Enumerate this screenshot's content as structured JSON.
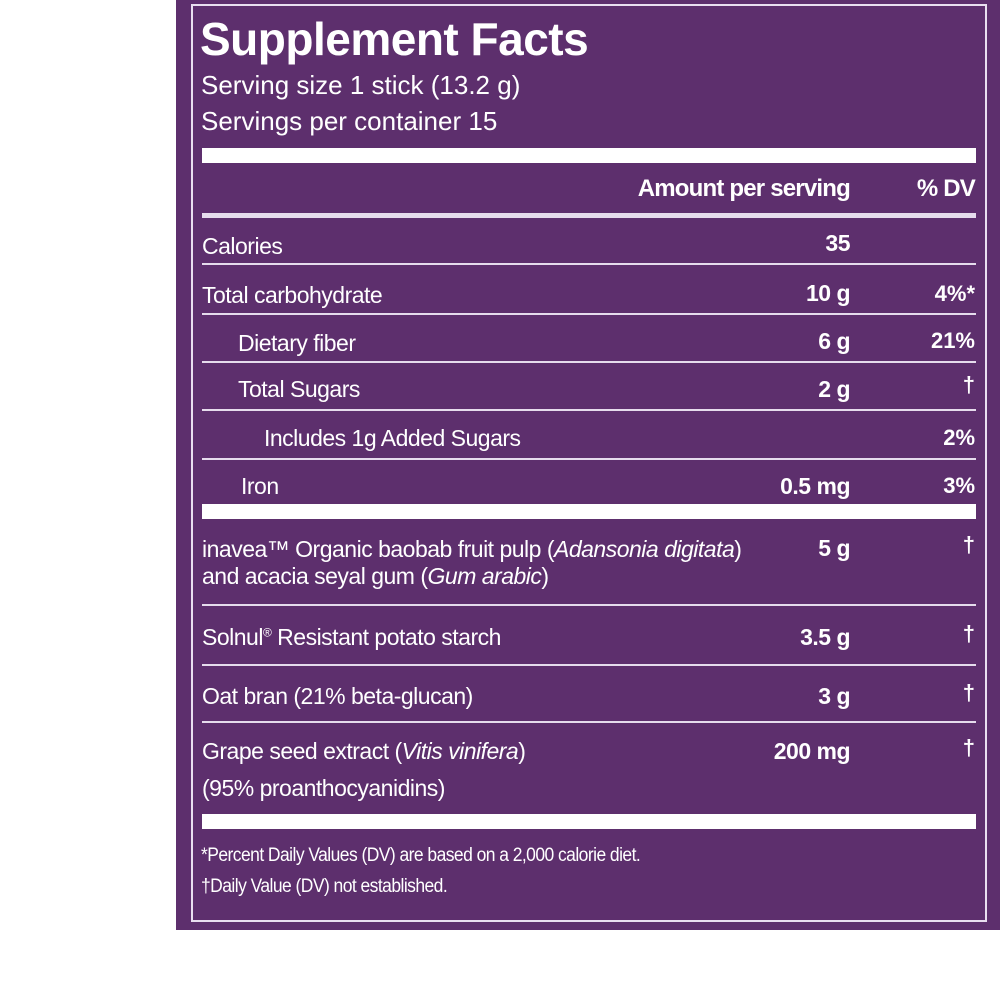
{
  "title": "Supplement Facts",
  "serving_size": "Serving size 1 stick (13.2 g)",
  "servings_per_container": "Servings per container 15",
  "header": {
    "amount": "Amount per serving",
    "dv": "% DV"
  },
  "nutrients": [
    {
      "label": "Calories",
      "amount": "35",
      "dv": ""
    },
    {
      "label": "Total carbohydrate",
      "amount": "10 g",
      "dv": "4%*"
    },
    {
      "label": "Dietary fiber",
      "amount": "6 g",
      "dv": "21%"
    },
    {
      "label": "Total Sugars",
      "amount": "2 g",
      "dv": "†"
    },
    {
      "label": "Includes 1g Added Sugars",
      "amount": "",
      "dv": "2%"
    },
    {
      "label": "Iron",
      "amount": "0.5 mg",
      "dv": "3%"
    }
  ],
  "ingredients": [
    {
      "line1_a": "inavea™ Organic baobab fruit pulp (",
      "line1_i": "Adansonia digitata",
      "line1_b": ")",
      "line2_a": "and acacia seyal gum (",
      "line2_i": "Gum arabic",
      "line2_b": ")",
      "amount": "5 g",
      "dv": "†"
    },
    {
      "name_a": "Solnul",
      "name_sup": "®",
      "name_b": " Resistant potato starch",
      "amount": "3.5 g",
      "dv": "†"
    },
    {
      "label": "Oat bran (21% beta-glucan)",
      "amount": "3 g",
      "dv": "†"
    },
    {
      "line1_a": "Grape seed extract (",
      "line1_i": "Vitis vinifera",
      "line1_b": ")",
      "line2": "(95% proanthocyanidins)",
      "amount": "200 mg",
      "dv": "†"
    }
  ],
  "footnotes": [
    "*Percent Daily Values (DV) are based on a 2,000 calorie diet.",
    "†Daily Value (DV) not established."
  ],
  "colors": {
    "panel": "#5d2f6d",
    "text": "#ffffff"
  }
}
